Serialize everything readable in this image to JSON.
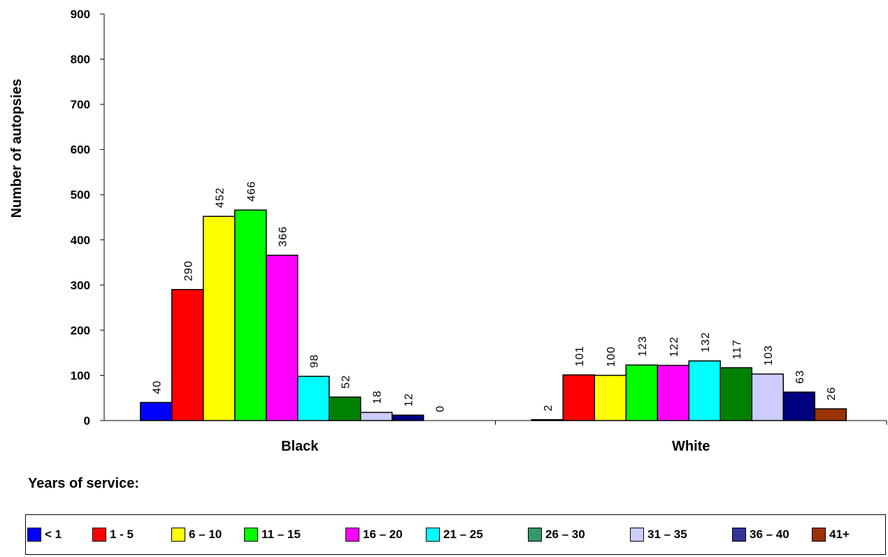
{
  "chart_data": {
    "type": "bar",
    "ylabel": "Number of autopsies",
    "xlabel": "",
    "ylim": [
      0,
      900
    ],
    "yticks": [
      0,
      100,
      200,
      300,
      400,
      500,
      600,
      700,
      800,
      900
    ],
    "categories": [
      "Black",
      "White"
    ],
    "grid": false,
    "legend_title": "Years of service:",
    "legend_position": "bottom",
    "data_labels": "rotated",
    "series": [
      {
        "name": "< 1",
        "color": "#0000ff",
        "values": [
          40,
          2
        ]
      },
      {
        "name": "1 - 5",
        "color": "#ff0000",
        "values": [
          290,
          101
        ]
      },
      {
        "name": "6 – 10",
        "color": "#ffff00",
        "values": [
          452,
          100
        ]
      },
      {
        "name": "11 – 15",
        "color": "#00ff00",
        "values": [
          466,
          123
        ]
      },
      {
        "name": "16 – 20",
        "color": "#ff00ff",
        "values": [
          366,
          122
        ]
      },
      {
        "name": "21 – 25",
        "color": "#00ffff",
        "values": [
          98,
          132
        ]
      },
      {
        "name": "26 – 30",
        "color": "#008000",
        "values": [
          52,
          117
        ]
      },
      {
        "name": "31 – 35",
        "color": "#ccccff",
        "values": [
          18,
          103
        ]
      },
      {
        "name": "36 – 40",
        "color": "#000080",
        "values": [
          12,
          63
        ]
      },
      {
        "name": "41+",
        "color": "#993300",
        "values": [
          0,
          26
        ]
      }
    ],
    "legend_swatch_colors": [
      "#0000ff",
      "#ff0000",
      "#ffff00",
      "#00ff00",
      "#ff00ff",
      "#00ffff",
      "#339966",
      "#ccccff",
      "#333399",
      "#993300"
    ]
  }
}
